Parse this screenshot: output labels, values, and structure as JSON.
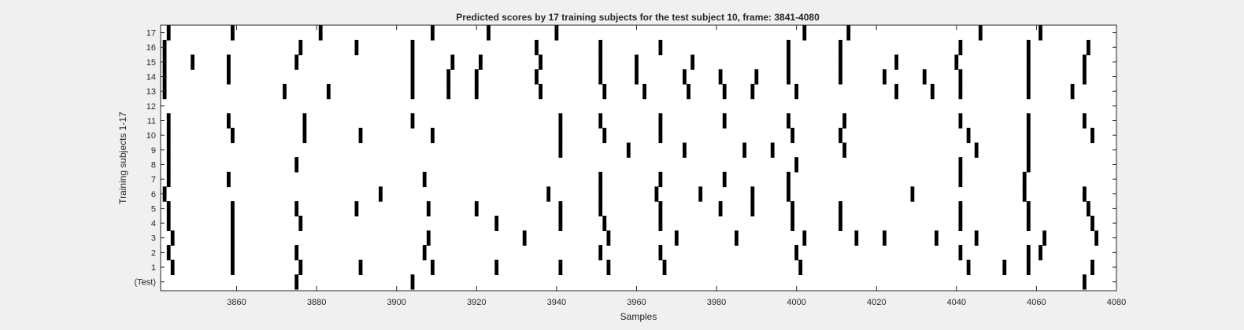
{
  "chart_data": {
    "type": "heatmap",
    "title": "Predicted scores by 17 training subjects for the test subject 10, frame: 3841-4080",
    "xlabel": "Samples",
    "ylabel": "Training subjects 1-17",
    "xlim": [
      3841,
      4080
    ],
    "xticks": [
      3860,
      3880,
      3900,
      3920,
      3940,
      3960,
      3980,
      4000,
      4020,
      4040,
      4060,
      4080
    ],
    "yticklabels": [
      "(Test)",
      "1",
      "2",
      "3",
      "4",
      "5",
      "6",
      "7",
      "8",
      "9",
      "10",
      "11",
      "12",
      "13",
      "14",
      "15",
      "16",
      "17"
    ],
    "grid": false,
    "legend": "none",
    "mark_color": "#000000",
    "background_color": "#ffffff",
    "rows": [
      {
        "label": "(Test)",
        "x": [
          3875,
          3904,
          4072
        ]
      },
      {
        "label": "1",
        "x": [
          3844,
          3859,
          3876,
          3891,
          3909,
          3925,
          3941,
          3953,
          3967,
          4001,
          4043,
          4052,
          4058,
          4074
        ]
      },
      {
        "label": "2",
        "x": [
          3843,
          3859,
          3875,
          3907,
          3951,
          3966,
          4000,
          4041,
          4058,
          4061
        ]
      },
      {
        "label": "3",
        "x": [
          3844,
          3859,
          3908,
          3932,
          3953,
          3970,
          3985,
          4002,
          4015,
          4022,
          4035,
          4045,
          4062,
          4075
        ]
      },
      {
        "label": "4",
        "x": [
          3843,
          3859,
          3876,
          3925,
          3941,
          3952,
          3966,
          3999,
          4011,
          4041,
          4058,
          4074
        ]
      },
      {
        "label": "5",
        "x": [
          3843,
          3859,
          3875,
          3890,
          3908,
          3920,
          3941,
          3951,
          3966,
          3981,
          3989,
          3999,
          4011,
          4041,
          4058,
          4073
        ]
      },
      {
        "label": "6",
        "x": [
          3842,
          3896,
          3938,
          3951,
          3965,
          3976,
          3989,
          3998,
          4029,
          4057,
          4072
        ]
      },
      {
        "label": "7",
        "x": [
          3843,
          3858,
          3907,
          3951,
          3966,
          3982,
          3998,
          4041,
          4057
        ]
      },
      {
        "label": "8",
        "x": [
          3843,
          3875,
          4000,
          4041,
          4058
        ]
      },
      {
        "label": "9",
        "x": [
          3843,
          3941,
          3958,
          3972,
          3987,
          3994,
          4012,
          4045,
          4058
        ]
      },
      {
        "label": "10",
        "x": [
          3843,
          3859,
          3877,
          3891,
          3909,
          3941,
          3952,
          3966,
          3999,
          4011,
          4043,
          4058,
          4074
        ]
      },
      {
        "label": "11",
        "x": [
          3843,
          3858,
          3877,
          3904,
          3941,
          3951,
          3966,
          3982,
          3998,
          4012,
          4041,
          4058,
          4072
        ]
      },
      {
        "label": "12",
        "x": []
      },
      {
        "label": "13",
        "x": [
          3842,
          3872,
          3883,
          3904,
          3913,
          3920,
          3936,
          3952,
          3962,
          3973,
          3982,
          3989,
          4000,
          4025,
          4034,
          4041,
          4058,
          4069
        ]
      },
      {
        "label": "14",
        "x": [
          3842,
          3858,
          3904,
          3913,
          3920,
          3935,
          3951,
          3960,
          3972,
          3981,
          3990,
          3998,
          4011,
          4022,
          4032,
          4041,
          4058,
          4072
        ]
      },
      {
        "label": "15",
        "x": [
          3842,
          3849,
          3858,
          3875,
          3904,
          3914,
          3921,
          3936,
          3951,
          3960,
          3974,
          3998,
          4011,
          4025,
          4040,
          4058,
          4072
        ]
      },
      {
        "label": "16",
        "x": [
          3842,
          3876,
          3890,
          3904,
          3935,
          3951,
          3966,
          3998,
          4011,
          4041,
          4058,
          4073
        ]
      },
      {
        "label": "17",
        "x": [
          3843,
          3859,
          3881,
          3909,
          3923,
          3940,
          4002,
          4013,
          4046,
          4061
        ]
      }
    ]
  }
}
